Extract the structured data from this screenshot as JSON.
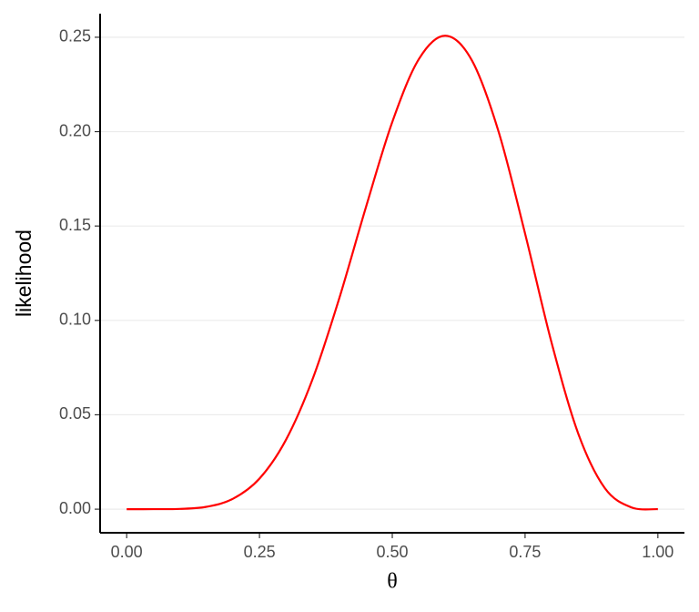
{
  "chart_data": {
    "type": "line",
    "x_label": "θ",
    "y_label": "likelihood",
    "x": [
      0,
      0.05,
      0.1,
      0.15,
      0.2,
      0.25,
      0.3,
      0.35,
      0.4,
      0.45,
      0.5,
      0.55,
      0.6,
      0.65,
      0.7,
      0.75,
      0.8,
      0.85,
      0.9,
      0.95,
      1
    ],
    "series": [
      {
        "color": "#ff0000",
        "values": [
          0,
          2.7e-06,
          0.000138,
          0.00125,
          0.0055,
          0.0162,
          0.0368,
          0.0689,
          0.1115,
          0.1596,
          0.2051,
          0.2384,
          0.2508,
          0.2377,
          0.2001,
          0.146,
          0.0881,
          0.0401,
          0.0112,
          0.00096,
          0
        ]
      }
    ],
    "xlim": [
      -0.05,
      1.05
    ],
    "ylim": [
      -0.0125,
      0.2625
    ],
    "xticks": [
      {
        "value": 0,
        "label": "0.00"
      },
      {
        "value": 0.25,
        "label": "0.25"
      },
      {
        "value": 0.5,
        "label": "0.50"
      },
      {
        "value": 0.75,
        "label": "0.75"
      },
      {
        "value": 1,
        "label": "1.00"
      }
    ],
    "yticks": [
      {
        "value": 0,
        "label": "0.00"
      },
      {
        "value": 0.05,
        "label": "0.05"
      },
      {
        "value": 0.1,
        "label": "0.10"
      },
      {
        "value": 0.15,
        "label": "0.15"
      },
      {
        "value": 0.2,
        "label": "0.20"
      },
      {
        "value": 0.25,
        "label": "0.25"
      }
    ],
    "grid": true
  }
}
